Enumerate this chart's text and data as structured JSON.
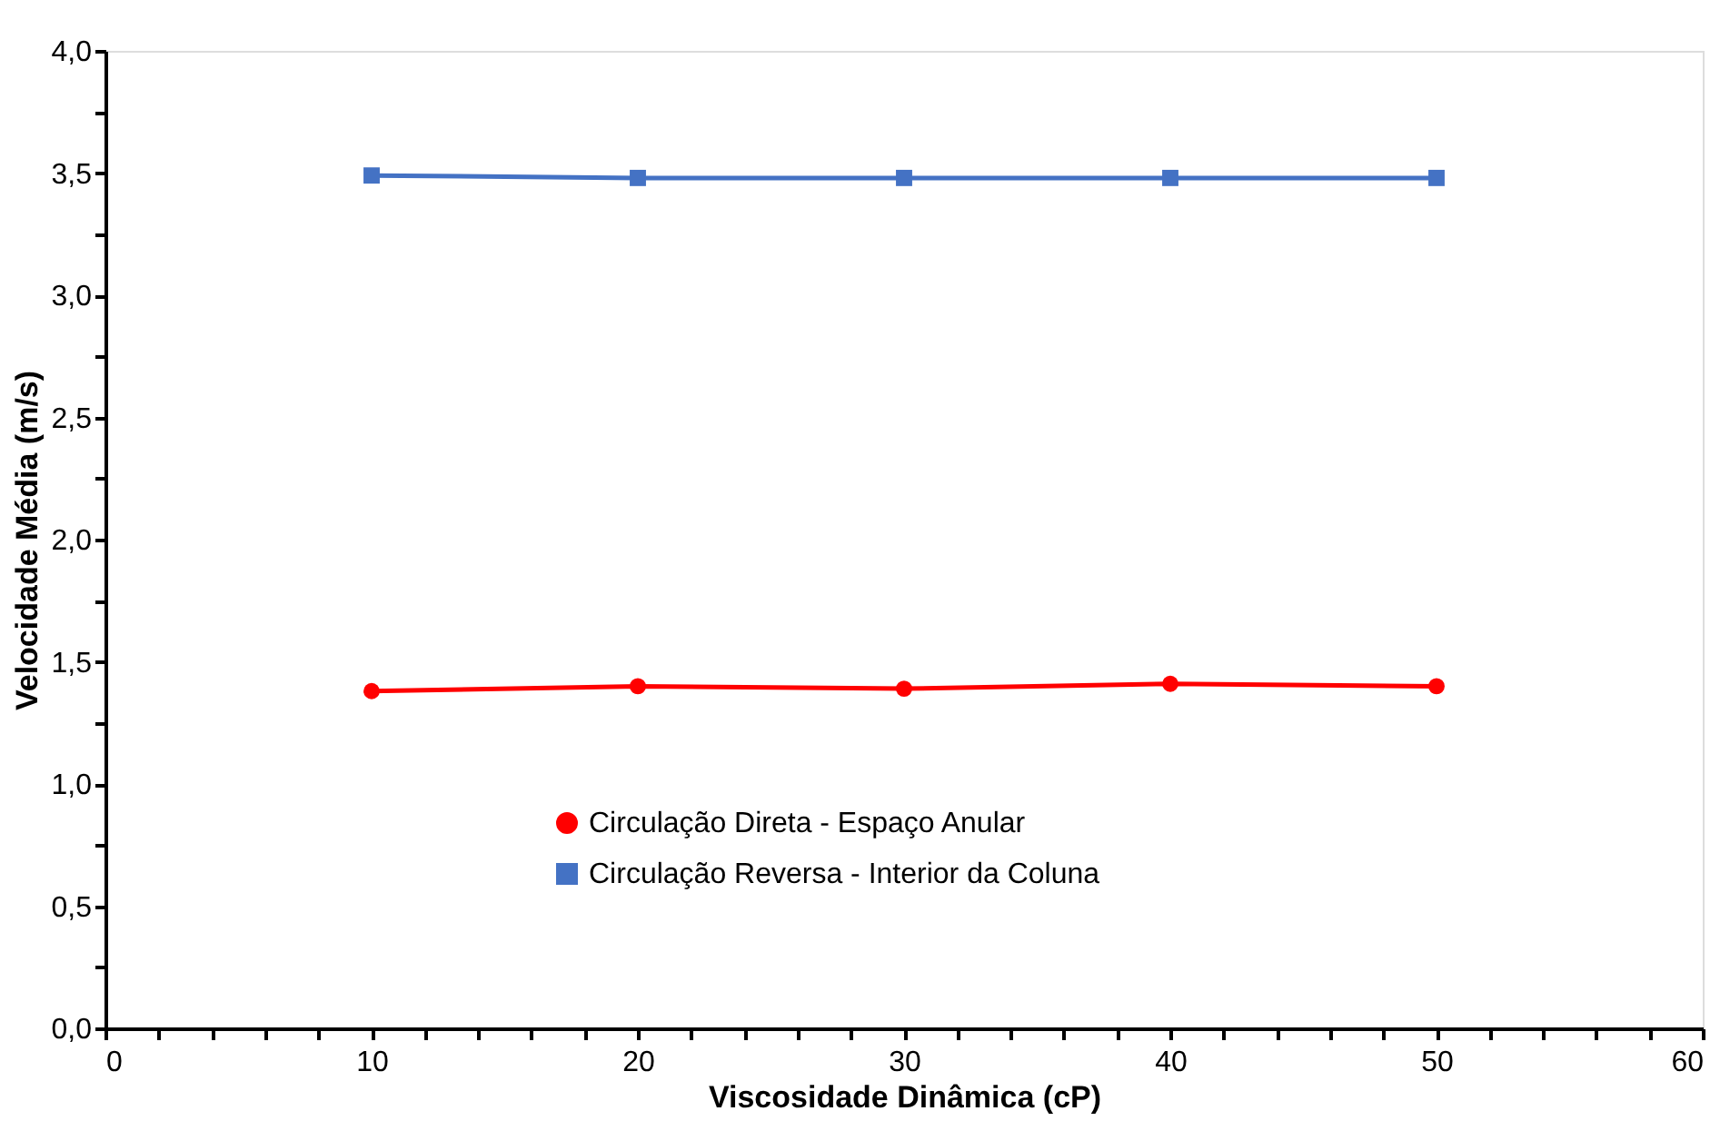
{
  "chart_data": {
    "type": "line",
    "xlabel": "Viscosidade Dinâmica (cP)",
    "ylabel": "Velocidade Média (m/s)",
    "x": [
      10,
      20,
      30,
      40,
      50
    ],
    "series": [
      {
        "name": "Circulação Direta - Espaço Anular",
        "color": "#ff0000",
        "marker": "circle",
        "values": [
          1.38,
          1.4,
          1.39,
          1.41,
          1.4
        ]
      },
      {
        "name": "Circulação Reversa - Interior da Coluna",
        "color": "#4472c4",
        "marker": "square",
        "values": [
          3.49,
          3.48,
          3.48,
          3.48,
          3.48
        ]
      }
    ],
    "xlim": [
      0,
      60
    ],
    "xticks": [
      0,
      {
        "value": 2,
        "label": null
      },
      {
        "value": 4,
        "label": null
      },
      {
        "value": 6,
        "label": null
      },
      {
        "value": 8,
        "label": null
      },
      10,
      {
        "value": 12,
        "label": null
      },
      {
        "value": 14,
        "label": null
      },
      {
        "value": 16,
        "label": null
      },
      {
        "value": 18,
        "label": null
      },
      20,
      {
        "value": 22,
        "label": null
      },
      {
        "value": 24,
        "label": null
      },
      {
        "value": 26,
        "label": null
      },
      {
        "value": 28,
        "label": null
      },
      30,
      {
        "value": 32,
        "label": null
      },
      {
        "value": 34,
        "label": null
      },
      {
        "value": 36,
        "label": null
      },
      {
        "value": 38,
        "label": null
      },
      40,
      {
        "value": 42,
        "label": null
      },
      {
        "value": 44,
        "label": null
      },
      {
        "value": 46,
        "label": null
      },
      {
        "value": 48,
        "label": null
      },
      50,
      {
        "value": 52,
        "label": null
      },
      {
        "value": 54,
        "label": null
      },
      {
        "value": 56,
        "label": null
      },
      {
        "value": 58,
        "label": null
      },
      60
    ],
    "ylim": [
      0,
      4
    ],
    "yticks": [
      {
        "value": 0,
        "label": "0,0"
      },
      {
        "value": 0.25,
        "label": null
      },
      {
        "value": 0.5,
        "label": "0,5"
      },
      {
        "value": 0.75,
        "label": null
      },
      {
        "value": 1,
        "label": "1,0"
      },
      {
        "value": 1.25,
        "label": null
      },
      {
        "value": 1.5,
        "label": "1,5"
      },
      {
        "value": 1.75,
        "label": null
      },
      {
        "value": 2,
        "label": "2,0"
      },
      {
        "value": 2.25,
        "label": null
      },
      {
        "value": 2.5,
        "label": "2,5"
      },
      {
        "value": 2.75,
        "label": null
      },
      {
        "value": 3,
        "label": "3,0"
      },
      {
        "value": 3.25,
        "label": null
      },
      {
        "value": 3.5,
        "label": "3,5"
      },
      {
        "value": 3.75,
        "label": null
      },
      {
        "value": 4,
        "label": "4,0"
      }
    ],
    "grid": false,
    "legend": "bottom",
    "line_style": "solid"
  }
}
